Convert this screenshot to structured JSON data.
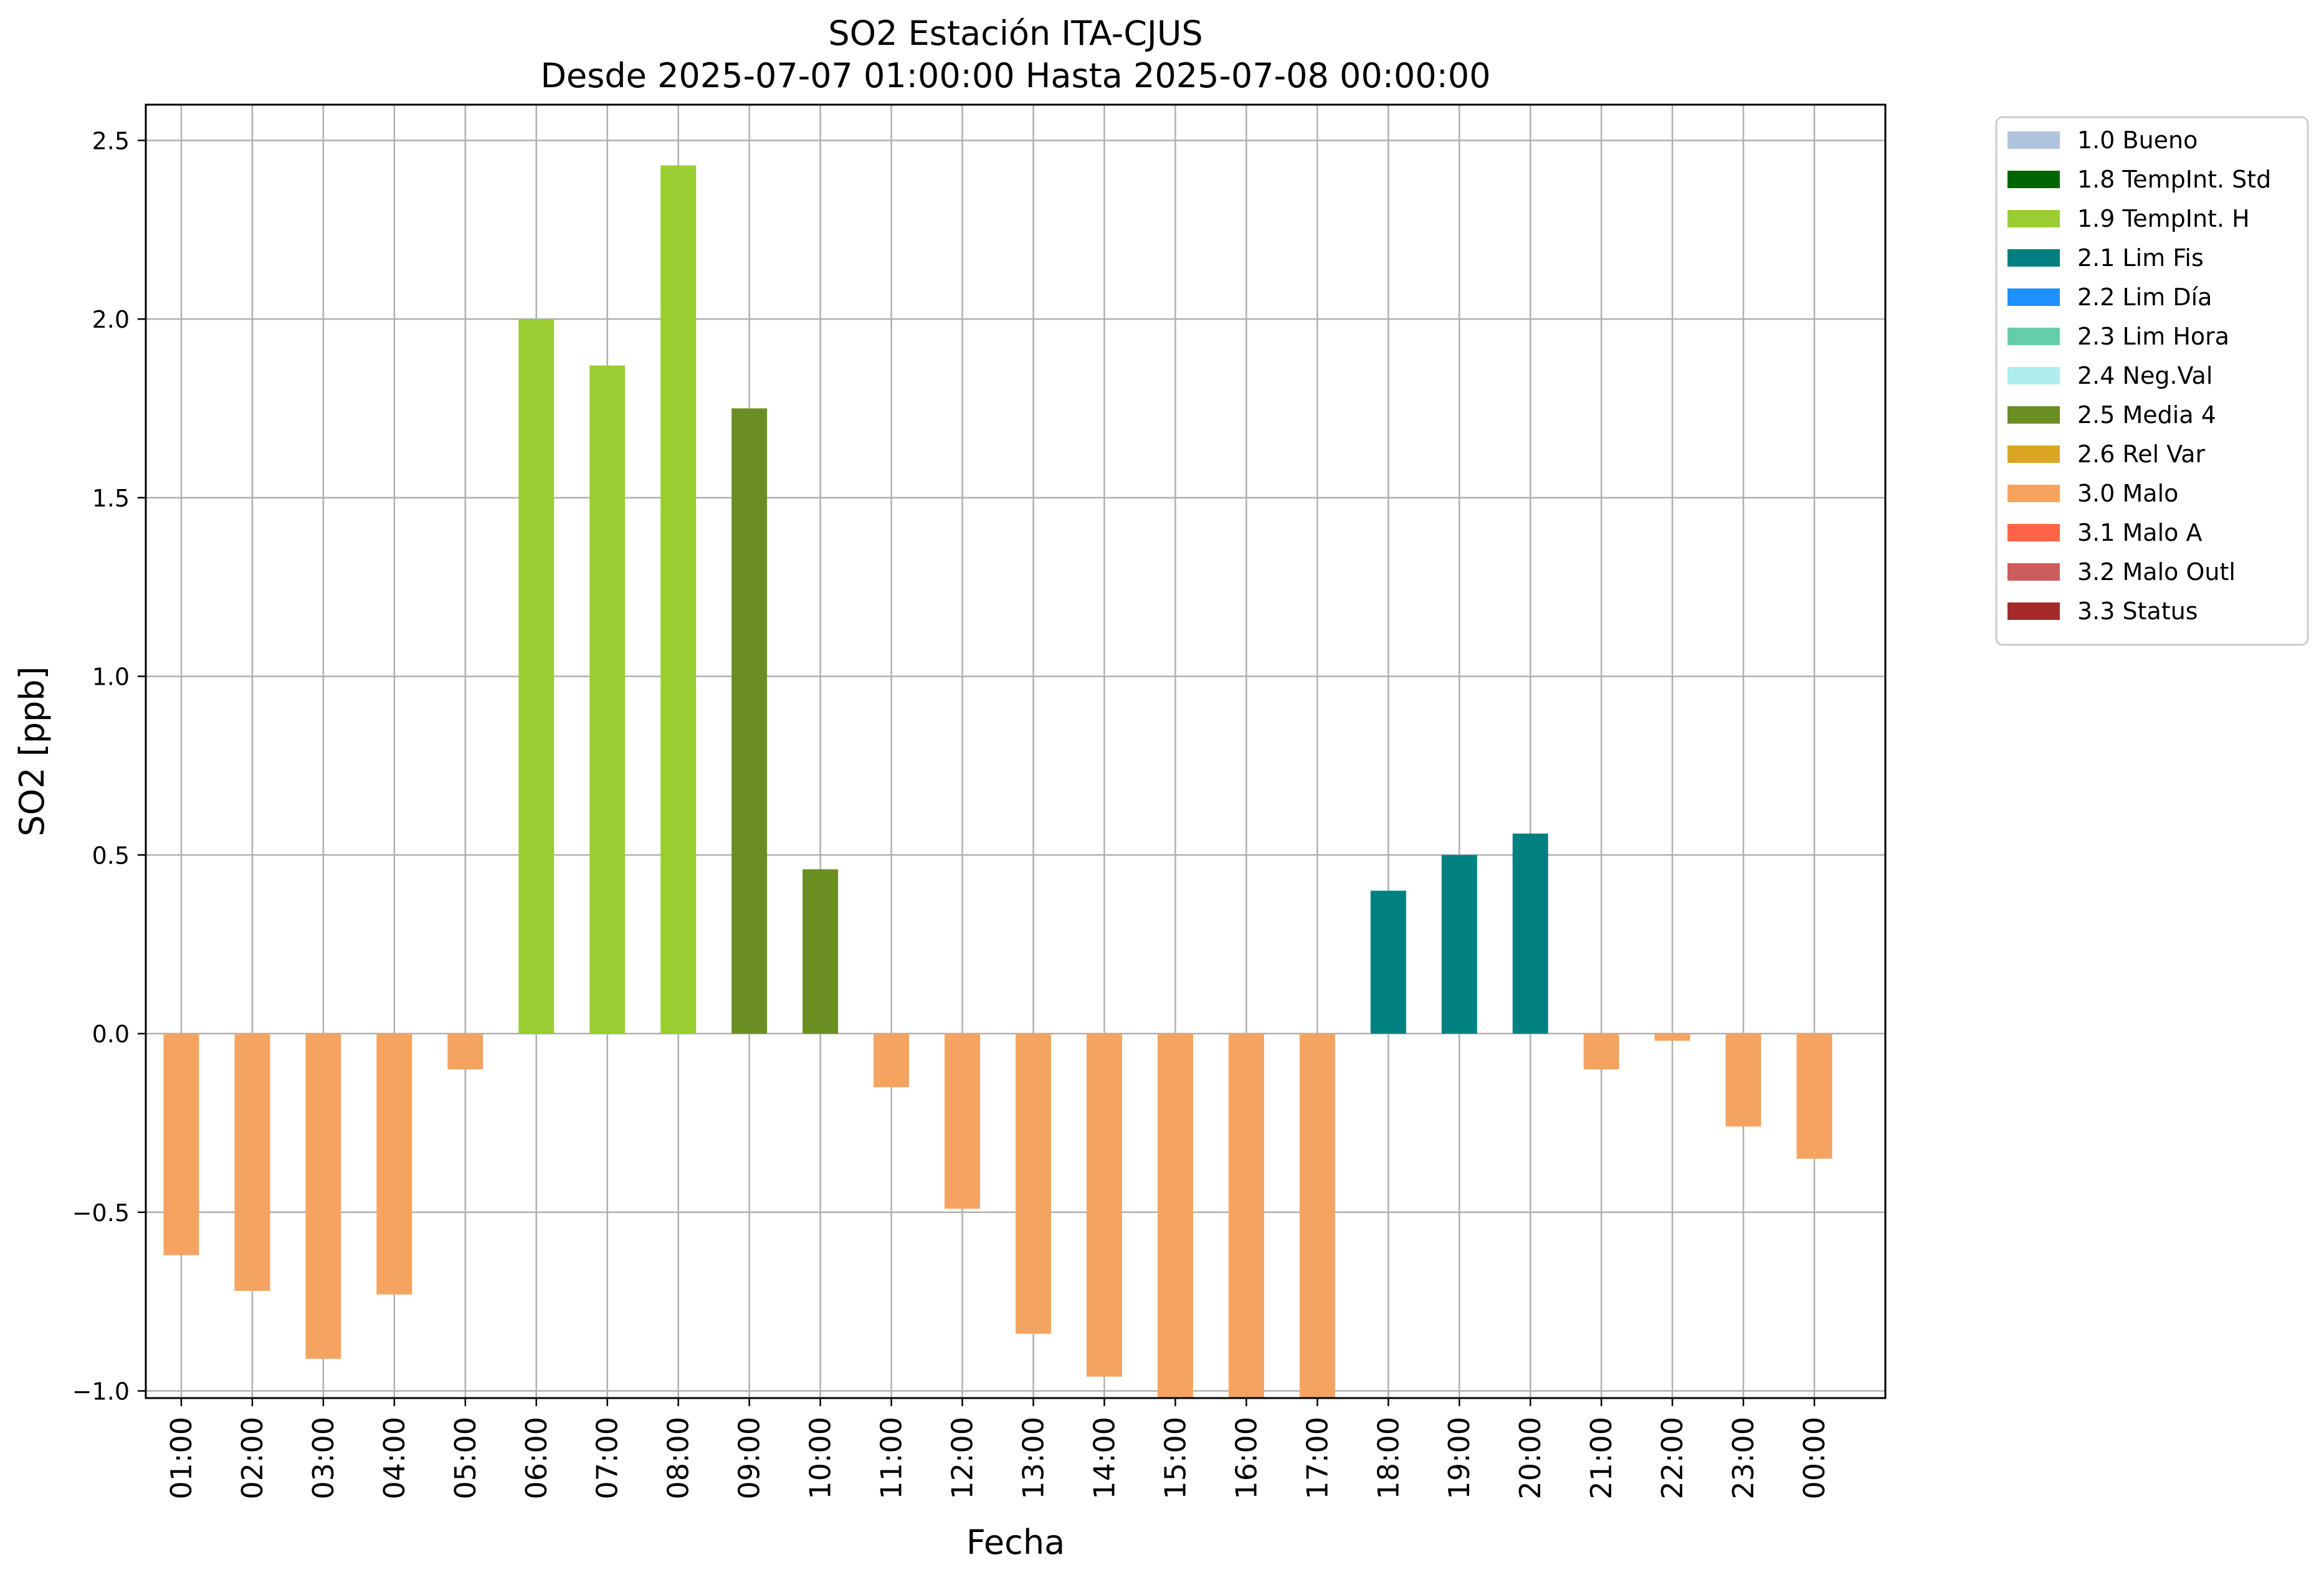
{
  "chart_data": {
    "type": "bar",
    "title": "SO2 Estación ITA-CJUS",
    "subtitle": "Desde 2025-07-07 01:00:00 Hasta 2025-07-08 00:00:00",
    "xlabel": "Fecha",
    "ylabel": "SO2 [ppb]",
    "ylim": [
      -1.02,
      2.6
    ],
    "yticks": [
      -1.0,
      -0.5,
      0.0,
      0.5,
      1.0,
      1.5,
      2.0,
      2.5
    ],
    "ytick_labels": [
      "−1.0",
      "−0.5",
      "0.0",
      "0.5",
      "1.0",
      "1.5",
      "2.0",
      "2.5"
    ],
    "grid": true,
    "legend_position": "outside-top-right",
    "categories": [
      "01:00",
      "02:00",
      "03:00",
      "04:00",
      "05:00",
      "06:00",
      "07:00",
      "08:00",
      "09:00",
      "10:00",
      "11:00",
      "12:00",
      "13:00",
      "14:00",
      "15:00",
      "16:00",
      "17:00",
      "18:00",
      "19:00",
      "20:00",
      "21:00",
      "22:00",
      "23:00",
      "00:00"
    ],
    "values": [
      -0.62,
      -0.72,
      -0.91,
      -0.73,
      -0.1,
      2.0,
      1.87,
      2.43,
      1.75,
      0.46,
      -0.15,
      -0.49,
      -0.84,
      -0.96,
      -1.03,
      -1.03,
      -1.03,
      0.4,
      0.5,
      0.56,
      -0.1,
      -0.02,
      -0.26,
      -0.35
    ],
    "flags": [
      "3.0",
      "3.0",
      "3.0",
      "3.0",
      "3.0",
      "1.9",
      "1.9",
      "1.9",
      "2.5",
      "2.5",
      "3.0",
      "3.0",
      "3.0",
      "3.0",
      "3.0",
      "3.0",
      "3.0",
      "2.1",
      "2.1",
      "2.1",
      "3.0",
      "3.0",
      "3.0",
      "3.0"
    ],
    "legend": [
      {
        "code": "1.0",
        "label": "1.0 Bueno",
        "color": "#b0c4de"
      },
      {
        "code": "1.8",
        "label": "1.8 TempInt. Std",
        "color": "#006400"
      },
      {
        "code": "1.9",
        "label": "1.9 TempInt. H",
        "color": "#9acd32"
      },
      {
        "code": "2.1",
        "label": "2.1 Lim Fis",
        "color": "#008080"
      },
      {
        "code": "2.2",
        "label": "2.2 Lim Día",
        "color": "#1e90ff"
      },
      {
        "code": "2.3",
        "label": "2.3 Lim Hora",
        "color": "#66cdaa"
      },
      {
        "code": "2.4",
        "label": "2.4 Neg.Val",
        "color": "#afeeee"
      },
      {
        "code": "2.5",
        "label": "2.5 Media 4",
        "color": "#6b8e23"
      },
      {
        "code": "2.6",
        "label": "2.6 Rel Var",
        "color": "#daa520"
      },
      {
        "code": "3.0",
        "label": "3.0 Malo",
        "color": "#f4a460"
      },
      {
        "code": "3.1",
        "label": "3.1 Malo A",
        "color": "#ff6347"
      },
      {
        "code": "3.2",
        "label": "3.2 Malo Outl",
        "color": "#cd5c5c"
      },
      {
        "code": "3.3",
        "label": "3.3 Status",
        "color": "#a52a2a"
      }
    ]
  }
}
